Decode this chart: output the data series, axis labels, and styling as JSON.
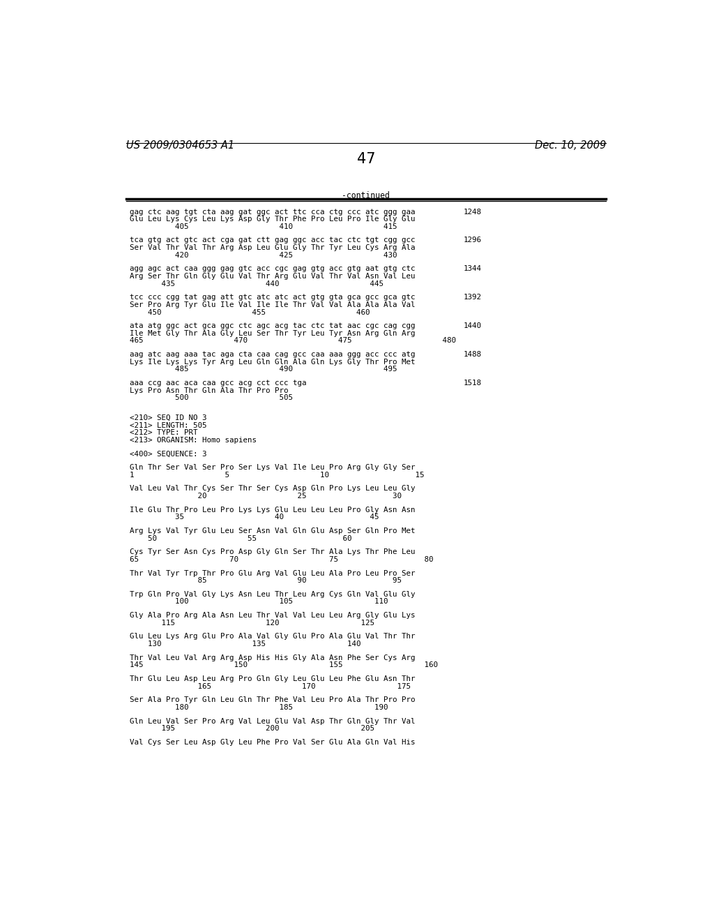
{
  "header_left": "US 2009/0304653 A1",
  "header_right": "Dec. 10, 2009",
  "page_number": "47",
  "continued_label": "-continued",
  "background_color": "#ffffff",
  "text_color": "#000000",
  "font_size": 7.8,
  "mono_font": "DejaVu Sans Mono",
  "header_font_size": 10.5,
  "page_num_font_size": 15,
  "content": [
    {
      "type": "seq_line",
      "text": "gag ctc aag tgt cta aag gat ggc act ttc cca ctg ccc atc ggg gaa",
      "num": "1248"
    },
    {
      "type": "aa_line",
      "text": "Glu Leu Lys Cys Leu Lys Asp Gly Thr Phe Pro Leu Pro Ile Gly Glu"
    },
    {
      "type": "pos_line",
      "text": "          405                    410                    415"
    },
    {
      "type": "blank"
    },
    {
      "type": "seq_line",
      "text": "tca gtg act gtc act cga gat ctt gag ggc acc tac ctc tgt cgg gcc",
      "num": "1296"
    },
    {
      "type": "aa_line",
      "text": "Ser Val Thr Val Thr Arg Asp Leu Glu Gly Thr Tyr Leu Cys Arg Ala"
    },
    {
      "type": "pos_line",
      "text": "          420                    425                    430"
    },
    {
      "type": "blank"
    },
    {
      "type": "seq_line",
      "text": "agg agc act caa ggg gag gtc acc cgc gag gtg acc gtg aat gtg ctc",
      "num": "1344"
    },
    {
      "type": "aa_line",
      "text": "Arg Ser Thr Gln Gly Glu Val Thr Arg Glu Val Thr Val Asn Val Leu"
    },
    {
      "type": "pos_line",
      "text": "       435                    440                    445"
    },
    {
      "type": "blank"
    },
    {
      "type": "seq_line",
      "text": "tcc ccc cgg tat gag att gtc atc atc act gtg gta gca gcc gca gtc",
      "num": "1392"
    },
    {
      "type": "aa_line",
      "text": "Ser Pro Arg Tyr Glu Ile Val Ile Ile Thr Val Val Ala Ala Ala Val"
    },
    {
      "type": "pos_line",
      "text": "    450                    455                    460"
    },
    {
      "type": "blank"
    },
    {
      "type": "seq_line",
      "text": "ata atg ggc act gca ggc ctc agc acg tac ctc tat aac cgc cag cgg",
      "num": "1440"
    },
    {
      "type": "aa_line",
      "text": "Ile Met Gly Thr Ala Gly Leu Ser Thr Tyr Leu Tyr Asn Arg Gln Arg"
    },
    {
      "type": "pos_line",
      "text": "465                    470                    475                    480"
    },
    {
      "type": "blank"
    },
    {
      "type": "seq_line",
      "text": "aag atc aag aaa tac aga cta caa cag gcc caa aaa ggg acc ccc atg",
      "num": "1488"
    },
    {
      "type": "aa_line",
      "text": "Lys Ile Lys Lys Tyr Arg Leu Gln Gln Ala Gln Lys Gly Thr Pro Met"
    },
    {
      "type": "pos_line",
      "text": "          485                    490                    495"
    },
    {
      "type": "blank"
    },
    {
      "type": "seq_line",
      "text": "aaa ccg aac aca caa gcc acg cct ccc tga",
      "num": "1518"
    },
    {
      "type": "aa_line",
      "text": "Lys Pro Asn Thr Gln Ala Thr Pro Pro"
    },
    {
      "type": "pos_line",
      "text": "          500                    505"
    },
    {
      "type": "blank"
    },
    {
      "type": "blank"
    },
    {
      "type": "meta_line",
      "text": "<210> SEQ ID NO 3"
    },
    {
      "type": "meta_line",
      "text": "<211> LENGTH: 505"
    },
    {
      "type": "meta_line",
      "text": "<212> TYPE: PRT"
    },
    {
      "type": "meta_line",
      "text": "<213> ORGANISM: Homo sapiens"
    },
    {
      "type": "blank"
    },
    {
      "type": "meta_line",
      "text": "<400> SEQUENCE: 3"
    },
    {
      "type": "blank"
    },
    {
      "type": "aa_line",
      "text": "Gln Thr Ser Val Ser Pro Ser Lys Val Ile Leu Pro Arg Gly Gly Ser"
    },
    {
      "type": "pos_line",
      "text": "1                    5                    10                   15"
    },
    {
      "type": "blank"
    },
    {
      "type": "aa_line",
      "text": "Val Leu Val Thr Cys Ser Thr Ser Cys Asp Gln Pro Lys Leu Leu Gly"
    },
    {
      "type": "pos_line",
      "text": "               20                    25                   30"
    },
    {
      "type": "blank"
    },
    {
      "type": "aa_line",
      "text": "Ile Glu Thr Pro Leu Pro Lys Lys Glu Leu Leu Leu Pro Gly Asn Asn"
    },
    {
      "type": "pos_line",
      "text": "          35                    40                   45"
    },
    {
      "type": "blank"
    },
    {
      "type": "aa_line",
      "text": "Arg Lys Val Tyr Glu Leu Ser Asn Val Gln Glu Asp Ser Gln Pro Met"
    },
    {
      "type": "pos_line",
      "text": "    50                    55                   60"
    },
    {
      "type": "blank"
    },
    {
      "type": "aa_line",
      "text": "Cys Tyr Ser Asn Cys Pro Asp Gly Gln Ser Thr Ala Lys Thr Phe Leu"
    },
    {
      "type": "pos_line",
      "text": "65                    70                    75                   80"
    },
    {
      "type": "blank"
    },
    {
      "type": "aa_line",
      "text": "Thr Val Tyr Trp Thr Pro Glu Arg Val Glu Leu Ala Pro Leu Pro Ser"
    },
    {
      "type": "pos_line",
      "text": "               85                    90                   95"
    },
    {
      "type": "blank"
    },
    {
      "type": "aa_line",
      "text": "Trp Gln Pro Val Gly Lys Asn Leu Thr Leu Arg Cys Gln Val Glu Gly"
    },
    {
      "type": "pos_line",
      "text": "          100                    105                  110"
    },
    {
      "type": "blank"
    },
    {
      "type": "aa_line",
      "text": "Gly Ala Pro Arg Ala Asn Leu Thr Val Val Leu Leu Arg Gly Glu Lys"
    },
    {
      "type": "pos_line",
      "text": "       115                    120                  125"
    },
    {
      "type": "blank"
    },
    {
      "type": "aa_line",
      "text": "Glu Leu Lys Arg Glu Pro Ala Val Gly Glu Pro Ala Glu Val Thr Thr"
    },
    {
      "type": "pos_line",
      "text": "    130                    135                  140"
    },
    {
      "type": "blank"
    },
    {
      "type": "aa_line",
      "text": "Thr Val Leu Val Arg Arg Asp His His Gly Ala Asn Phe Ser Cys Arg"
    },
    {
      "type": "pos_line",
      "text": "145                    150                  155                  160"
    },
    {
      "type": "blank"
    },
    {
      "type": "aa_line",
      "text": "Thr Glu Leu Asp Leu Arg Pro Gln Gly Leu Glu Leu Phe Glu Asn Thr"
    },
    {
      "type": "pos_line",
      "text": "               165                    170                  175"
    },
    {
      "type": "blank"
    },
    {
      "type": "aa_line",
      "text": "Ser Ala Pro Tyr Gln Leu Gln Thr Phe Val Leu Pro Ala Thr Pro Pro"
    },
    {
      "type": "pos_line",
      "text": "          180                    185                  190"
    },
    {
      "type": "blank"
    },
    {
      "type": "aa_line",
      "text": "Gln Leu Val Ser Pro Arg Val Leu Glu Val Asp Thr Gln Gly Thr Val"
    },
    {
      "type": "pos_line",
      "text": "       195                    200                  205"
    },
    {
      "type": "blank"
    },
    {
      "type": "aa_line",
      "text": "Val Cys Ser Leu Asp Gly Leu Phe Pro Val Ser Glu Ala Gln Val His"
    }
  ]
}
